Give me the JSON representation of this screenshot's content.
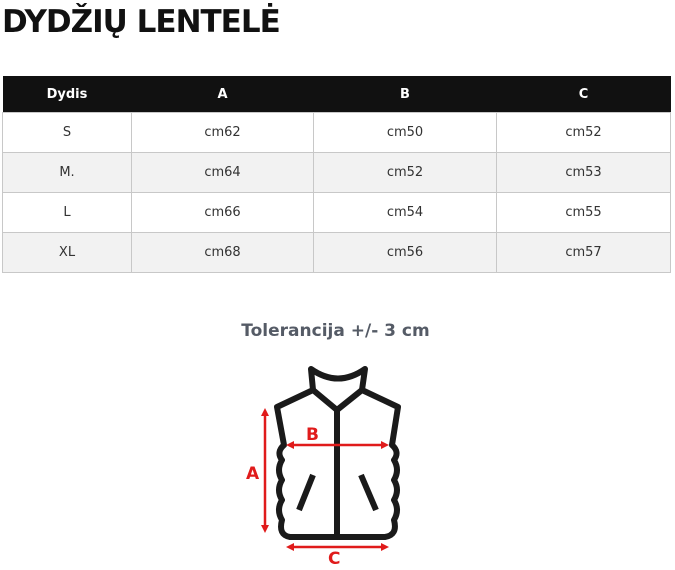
{
  "title": "DYDŽIŲ LENTELĖ",
  "table": {
    "headers": [
      "Dydis",
      "A",
      "B",
      "C"
    ],
    "rows": [
      [
        "S",
        "cm62",
        "cm50",
        "cm52"
      ],
      [
        "M.",
        "cm64",
        "cm52",
        "cm53"
      ],
      [
        "L",
        "cm66",
        "cm54",
        "cm55"
      ],
      [
        "XL",
        "cm68",
        "cm56",
        "cm57"
      ]
    ]
  },
  "tolerance": "Tolerancija +/- 3 cm",
  "diagram": {
    "label_a": "A",
    "label_b": "B",
    "label_c": "C",
    "arrow_color": "#e01b1b",
    "outline_color": "#1a1a1a"
  }
}
